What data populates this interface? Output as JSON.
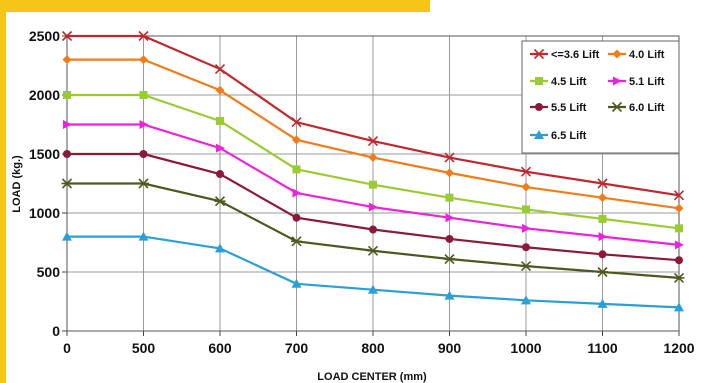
{
  "chart_data": {
    "type": "line",
    "title": "",
    "xlabel": "LOAD CENTER (mm)",
    "ylabel": "LOAD (kg.)",
    "categories": [
      "0",
      "500",
      "600",
      "700",
      "800",
      "900",
      "1000",
      "1100",
      "1200"
    ],
    "y_ticks": [
      "0",
      "500",
      "1000",
      "1500",
      "2000",
      "2500"
    ],
    "ylim": [
      0,
      2500
    ],
    "grid": true,
    "legend_position": "top-right",
    "series": [
      {
        "name": "<=3.6 Lift",
        "color": "#c0282d",
        "marker": "x",
        "values": [
          2500,
          2500,
          2220,
          1770,
          1610,
          1470,
          1350,
          1250,
          1150
        ]
      },
      {
        "name": "4.0 Lift",
        "color": "#f07d1a",
        "marker": "diamond",
        "values": [
          2300,
          2300,
          2040,
          1620,
          1470,
          1340,
          1220,
          1130,
          1040
        ]
      },
      {
        "name": "4.5 Lift",
        "color": "#99cc33",
        "marker": "square",
        "values": [
          2000,
          2000,
          1780,
          1370,
          1240,
          1130,
          1030,
          950,
          870
        ]
      },
      {
        "name": "5.1 Lift",
        "color": "#ee22dd",
        "marker": "triangle-right",
        "values": [
          1750,
          1750,
          1550,
          1170,
          1050,
          960,
          870,
          800,
          730
        ]
      },
      {
        "name": "5.5 Lift",
        "color": "#8b1a3a",
        "marker": "circle",
        "values": [
          1500,
          1500,
          1330,
          960,
          860,
          780,
          710,
          650,
          600
        ]
      },
      {
        "name": "6.0 Lift",
        "color": "#4d5a1e",
        "marker": "star",
        "values": [
          1250,
          1250,
          1100,
          760,
          680,
          610,
          550,
          500,
          450
        ]
      },
      {
        "name": "6.5 Lift",
        "color": "#2a9fd8",
        "marker": "triangle-up",
        "values": [
          800,
          800,
          700,
          400,
          350,
          300,
          260,
          230,
          200
        ]
      }
    ]
  }
}
